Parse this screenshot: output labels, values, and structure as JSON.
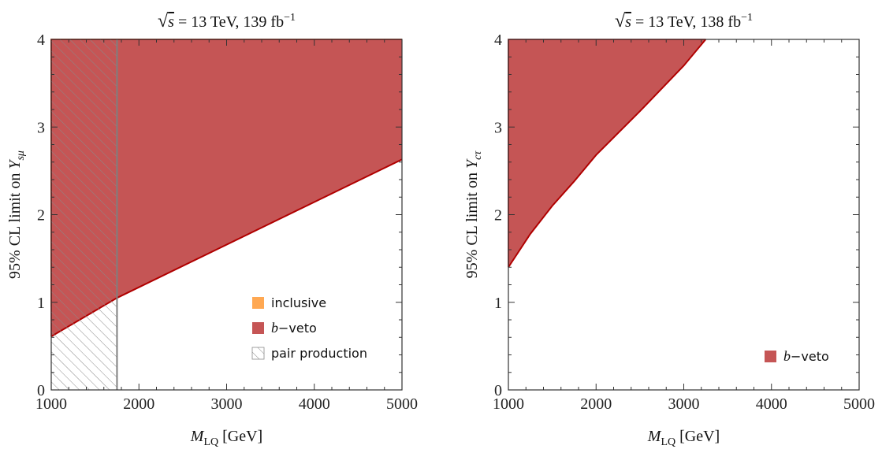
{
  "chart_data": [
    {
      "type": "area",
      "title": "√s = 13 TeV, 139 fb⁻¹",
      "title_parts": {
        "sqrt": "√",
        "s": "s",
        "rest": " = 13 TeV, 139 fb",
        "sup": "−1"
      },
      "xlabel": "M_LQ [GeV]",
      "xlabel_parts": {
        "main": "M",
        "sub": "LQ",
        "unit": "[GeV]"
      },
      "ylabel": "95% CL limit on Y_sμ",
      "ylabel_parts": {
        "main": "95% CL limit on Y",
        "sub": "sμ"
      },
      "xlim": [
        1000,
        5000
      ],
      "ylim": [
        0,
        4
      ],
      "xticks": [
        1000,
        2000,
        3000,
        4000,
        5000
      ],
      "yticks": [
        0,
        1,
        2,
        3,
        4
      ],
      "grid": false,
      "legend_position": "bottom-right",
      "series": [
        {
          "name": "inclusive",
          "color": "#FFA852",
          "edge_color": "#F08C20",
          "x": [
            1000,
            1750,
            5000
          ],
          "y": [
            0.95,
            1.25,
            2.72
          ]
        },
        {
          "name": "b−veto",
          "color": "#C55555",
          "edge_color": "#B00000",
          "x": [
            1000,
            1750,
            5000
          ],
          "y": [
            0.61,
            1.05,
            2.63
          ]
        },
        {
          "name": "pair production",
          "color": "#888888",
          "hatched": true,
          "x_max": 1750
        }
      ]
    },
    {
      "type": "area",
      "title": "√s = 13 TeV, 138 fb⁻¹",
      "title_parts": {
        "sqrt": "√",
        "s": "s",
        "rest": " = 13 TeV, 138 fb",
        "sup": "−1"
      },
      "xlabel": "M_LQ [GeV]",
      "xlabel_parts": {
        "main": "M",
        "sub": "LQ",
        "unit": "[GeV]"
      },
      "ylabel": "95% CL limit on Y_cτ",
      "ylabel_parts": {
        "main": "95% CL limit on Y",
        "sub": "cτ"
      },
      "xlim": [
        1000,
        5000
      ],
      "ylim": [
        0,
        4
      ],
      "xticks": [
        1000,
        2000,
        3000,
        4000,
        5000
      ],
      "yticks": [
        0,
        1,
        2,
        3,
        4
      ],
      "grid": false,
      "legend_position": "bottom-right",
      "series": [
        {
          "name": "b−veto",
          "color": "#C55555",
          "edge_color": "#B00000",
          "x": [
            1000,
            1250,
            1500,
            1750,
            2000,
            2500,
            3000,
            3250
          ],
          "y": [
            1.4,
            1.78,
            2.1,
            2.38,
            2.68,
            3.18,
            3.7,
            4.0
          ]
        }
      ]
    }
  ]
}
